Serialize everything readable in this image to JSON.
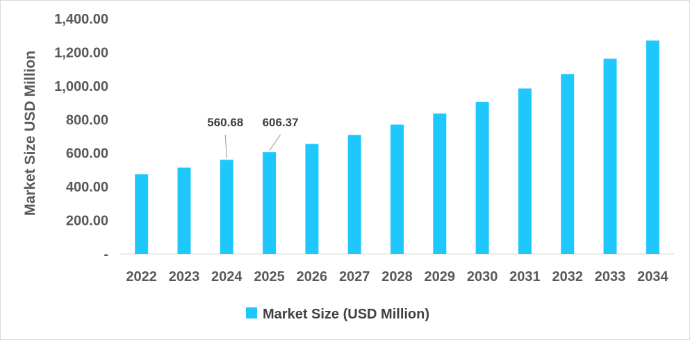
{
  "chart_data": {
    "type": "bar",
    "categories": [
      "2022",
      "2023",
      "2024",
      "2025",
      "2026",
      "2027",
      "2028",
      "2029",
      "2030",
      "2031",
      "2032",
      "2033",
      "2034"
    ],
    "series": [
      {
        "name": "Market Size (USD Million)",
        "values": [
          474.0,
          514.0,
          560.68,
          606.37,
          655.0,
          708.0,
          770.0,
          836.0,
          905.0,
          985.0,
          1070.0,
          1162.0,
          1270.0
        ]
      }
    ],
    "ylabel": "Market Size USD Million",
    "xlabel": "",
    "ylim": [
      0,
      1400
    ],
    "y_ticks": [
      "-",
      "200.00",
      "400.00",
      "600.00",
      "800.00",
      "1,000.00",
      "1,200.00",
      "1,400.00"
    ],
    "data_labels": [
      {
        "category": "2024",
        "text": "560.68"
      },
      {
        "category": "2025",
        "text": "606.37"
      }
    ],
    "bar_color": "#1fc8fc",
    "grid": false,
    "legend_position": "bottom"
  }
}
